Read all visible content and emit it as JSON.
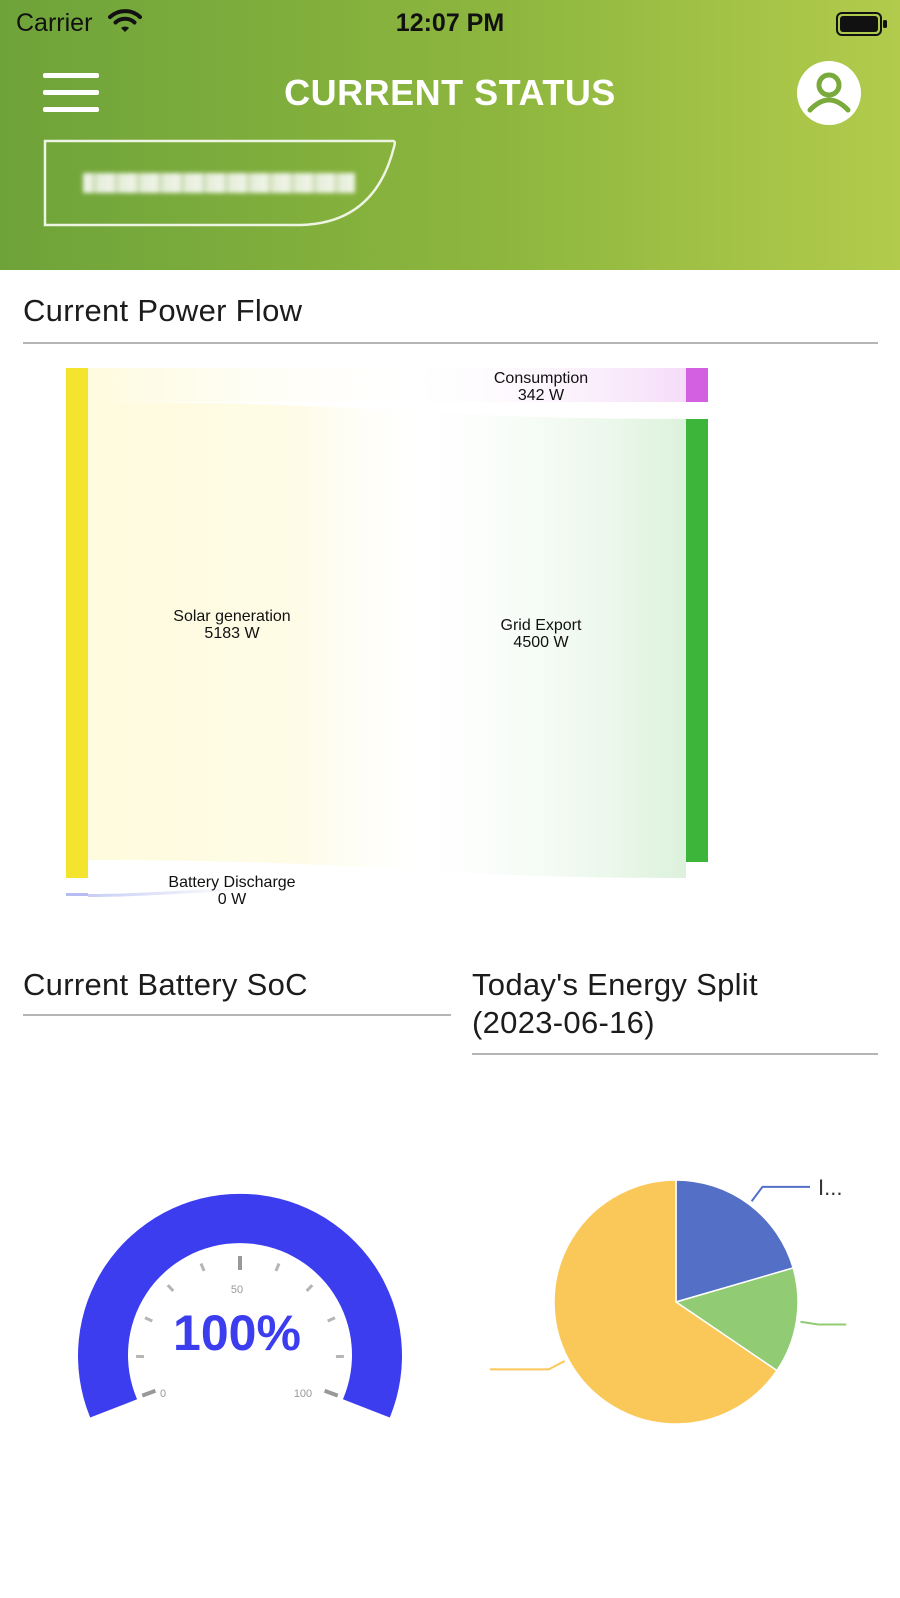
{
  "status_bar": {
    "carrier": "Carrier",
    "time": "12:07 PM"
  },
  "header": {
    "title": "CURRENT STATUS",
    "menu_icon": "hamburger-menu-icon",
    "profile_icon": "user-profile-icon"
  },
  "sections": {
    "power_flow_title": "Current Power Flow",
    "battery_title": "Current Battery SoC",
    "energy_split_title_line1": "Today's Energy Split",
    "energy_split_title_line2": "(2023-06-16)"
  },
  "power_flow": {
    "solar": {
      "label": "Solar generation",
      "value": "5183 W",
      "watts": 5183
    },
    "battery": {
      "label": "Battery Discharge",
      "value": "0 W",
      "watts": 0
    },
    "consumption": {
      "label": "Consumption",
      "value": "342 W",
      "watts": 342
    },
    "grid": {
      "label": "Grid Export",
      "value": "4500 W",
      "watts": 4500
    },
    "colors": {
      "solar": "#f5e42e",
      "consumption": "#d260e0",
      "grid": "#3db53a",
      "battery": "#4a5ae0"
    }
  },
  "battery_gauge": {
    "value": 100,
    "value_label": "100%",
    "min_label": "0",
    "mid_label": "50",
    "max_label": "100",
    "color": "#3d3df0"
  },
  "chart_data": {
    "type": "pie",
    "title": "Today's Energy Split (2023-06-16)",
    "slices": [
      {
        "label": "I...",
        "fraction": 0.205,
        "color": "#5470c6"
      },
      {
        "label": "",
        "fraction": 0.14,
        "color": "#91cc75"
      },
      {
        "label": "",
        "fraction": 0.655,
        "color": "#fac858"
      }
    ]
  }
}
